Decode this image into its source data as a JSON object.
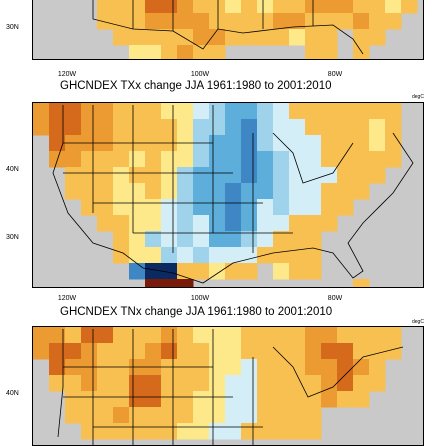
{
  "panels": [
    {
      "id": "top-partial",
      "title": "",
      "units": "",
      "lat_labels": [
        "30N"
      ],
      "lon_labels": [
        "120W",
        "100W",
        "80W"
      ],
      "palette_note": "warm",
      "colors": {
        "ocean": "#c9c9c9"
      }
    },
    {
      "id": "txx",
      "title": "GHCNDEX TXx change JJA 1961:1980 to 2001:2010",
      "units": "degC",
      "lat_labels": [
        "40N",
        "30N"
      ],
      "lon_labels": [
        "120W",
        "100W",
        "80W"
      ],
      "palette_note": "mixed"
    },
    {
      "id": "tnx",
      "title": "GHCNDEX TNx change JJA 1961:1980 to 2001:2010",
      "units": "degC",
      "lat_labels": [
        "40N"
      ],
      "lon_labels": [],
      "palette_note": "warm"
    }
  ],
  "colors": {
    "ocean": "#c9c9c9",
    "dark_orange": "#d56a1d",
    "orange": "#ec9a32",
    "light_orange": "#f7c050",
    "yellow": "#fde98a",
    "pale_yellow": "#fff6bd",
    "pale_blue": "#d4eef8",
    "light_blue": "#9fd3ec",
    "blue": "#5eaedb",
    "mid_blue": "#3f86c4",
    "dark_blue": "#0c2a62",
    "dark_red": "#7a1a08"
  }
}
